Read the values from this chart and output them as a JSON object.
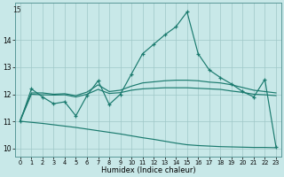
{
  "xlabel": "Humidex (Indice chaleur)",
  "background_color": "#c8e8e8",
  "line_color": "#1a7a6e",
  "grid_color": "#9fc8c8",
  "xlim": [
    -0.5,
    23.5
  ],
  "ylim": [
    9.7,
    15.4
  ],
  "xtick_labels": [
    "0",
    "1",
    "2",
    "3",
    "4",
    "5",
    "6",
    "7",
    "8",
    "9",
    "10",
    "11",
    "12",
    "13",
    "14",
    "15",
    "16",
    "17",
    "18",
    "19",
    "20",
    "21",
    "22",
    "23"
  ],
  "ytick_values": [
    10,
    11,
    12,
    13,
    14
  ],
  "top_ytick": 15,
  "line_zigzag": [
    11.0,
    12.2,
    11.9,
    11.65,
    11.72,
    11.2,
    11.95,
    12.5,
    11.62,
    12.0,
    12.75,
    13.5,
    13.85,
    14.2,
    14.5,
    15.05,
    13.5,
    12.9,
    12.62,
    12.38,
    12.1,
    11.9,
    12.55,
    10.05
  ],
  "line_smooth_upper": [
    11.05,
    12.05,
    12.05,
    12.0,
    12.02,
    11.95,
    12.08,
    12.35,
    12.1,
    12.15,
    12.3,
    12.42,
    12.46,
    12.5,
    12.52,
    12.52,
    12.5,
    12.45,
    12.42,
    12.35,
    12.25,
    12.15,
    12.1,
    12.05
  ],
  "line_smooth_lower": [
    11.02,
    12.0,
    11.98,
    11.97,
    11.98,
    11.9,
    12.0,
    12.18,
    12.03,
    12.06,
    12.15,
    12.2,
    12.22,
    12.24,
    12.24,
    12.24,
    12.22,
    12.2,
    12.18,
    12.12,
    12.07,
    12.0,
    11.98,
    11.95
  ],
  "line_decline": [
    11.0,
    10.96,
    10.92,
    10.87,
    10.82,
    10.77,
    10.71,
    10.65,
    10.59,
    10.53,
    10.46,
    10.39,
    10.33,
    10.26,
    10.19,
    10.13,
    10.1,
    10.08,
    10.06,
    10.05,
    10.04,
    10.03,
    10.03,
    10.02
  ]
}
